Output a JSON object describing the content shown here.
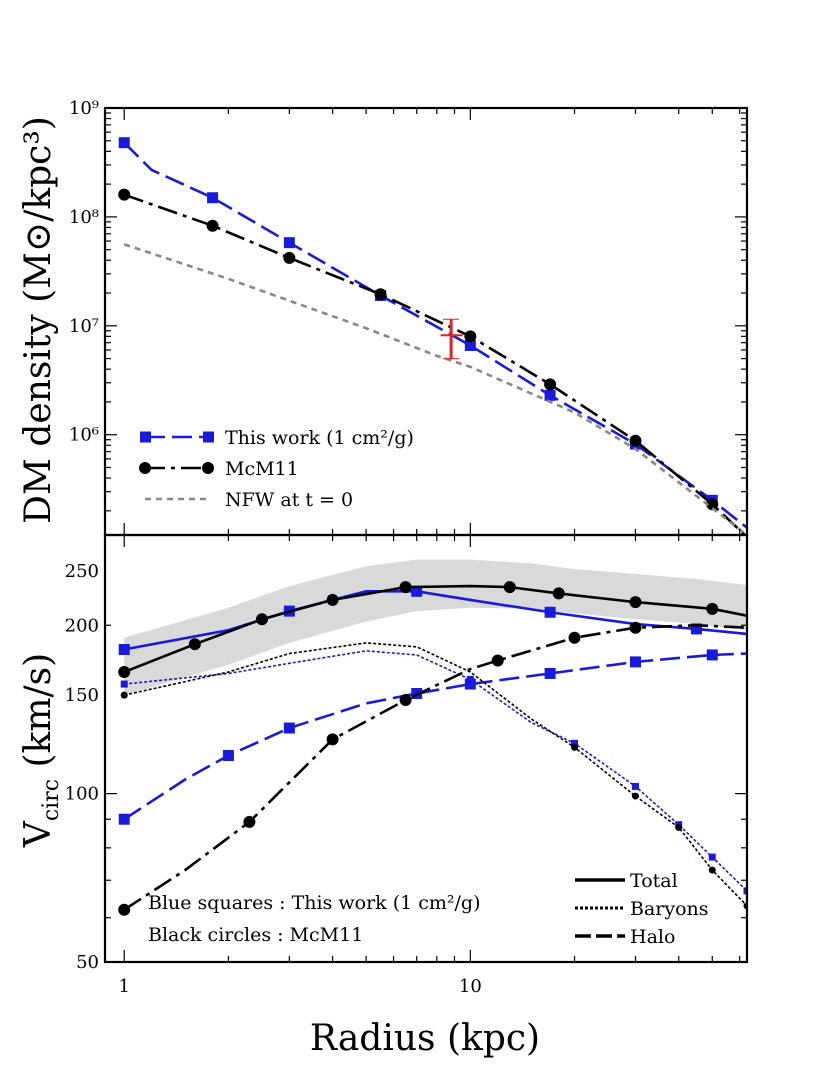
{
  "chart_data": [
    {
      "panel": "top",
      "type": "line",
      "title": "",
      "xlabel": "",
      "ylabel": "DM density (M⊙/kpc³)",
      "xscale": "log",
      "yscale": "log",
      "xlim": [
        0.88,
        63
      ],
      "ylim": [
        120000,
        1000000000
      ],
      "yticks": [
        {
          "value": 1000000,
          "label": "10⁶"
        },
        {
          "value": 10000000,
          "label": "10⁷"
        },
        {
          "value": 100000000,
          "label": "10⁸"
        },
        {
          "value": 1000000000,
          "label": "10⁹"
        }
      ],
      "legend_position": "lower-left",
      "series": [
        {
          "name": "This work (1 cm²/g)",
          "color": "#1a1adc",
          "dash": "long",
          "marker": "square",
          "x": [
            1.0,
            1.2,
            1.8,
            3.0,
            5.5,
            10.0,
            17.0,
            30.0,
            50.0,
            63.0
          ],
          "y": [
            480000000,
            270000000,
            150000000,
            58000000,
            19000000,
            6600000,
            2300000,
            820000,
            250000,
            140000
          ],
          "markers": [
            0,
            2,
            3,
            4,
            5,
            6,
            7,
            8
          ]
        },
        {
          "name": "McM11",
          "color": "#000000",
          "dash": "longdot",
          "marker": "circle",
          "x": [
            1.0,
            1.8,
            3.0,
            5.5,
            10.0,
            17.0,
            30.0,
            50.0,
            63.0
          ],
          "y": [
            160000000,
            83000000,
            42000000,
            19500000,
            8000000,
            2900000,
            880000,
            230000,
            115000
          ],
          "markers": [
            0,
            1,
            2,
            3,
            4,
            5,
            6,
            7
          ]
        },
        {
          "name": "NFW at t = 0",
          "color": "#888888",
          "dash": "short",
          "marker": "none",
          "x": [
            1.0,
            2.0,
            3.0,
            5.0,
            8.0,
            10.0,
            20.0,
            30.0,
            63.0
          ],
          "y": [
            56000000,
            27000000,
            17000000,
            9500000,
            5300000,
            4200000,
            1600000,
            740000,
            120000
          ],
          "markers": []
        }
      ],
      "errorbar": {
        "x": 8.8,
        "y": 8200000,
        "ylow": 5000000,
        "yhigh": 11500000,
        "xlow": 8.2,
        "xhigh": 9.5,
        "color": "#dd2222"
      }
    },
    {
      "panel": "bottom",
      "type": "line",
      "title": "",
      "xlabel": "Radius (kpc)",
      "ylabel": "V_circ (km/s)",
      "xscale": "log",
      "yscale": "log",
      "xlim": [
        0.88,
        63
      ],
      "ylim": [
        50,
        290
      ],
      "xticks": [
        {
          "value": 1,
          "label": "1"
        },
        {
          "value": 10,
          "label": "10"
        }
      ],
      "yticks": [
        {
          "value": 50,
          "label": "50"
        },
        {
          "value": 100,
          "label": "100"
        },
        {
          "value": 150,
          "label": "150"
        },
        {
          "value": 200,
          "label": "200"
        },
        {
          "value": 250,
          "label": "250"
        }
      ],
      "band": {
        "color": "#d9d9d9",
        "x": [
          1.0,
          2.0,
          3.0,
          5.0,
          7.0,
          10.0,
          15.0,
          20.0,
          30.0,
          45.0,
          63.0
        ],
        "upper": [
          190,
          215,
          235,
          255,
          262,
          262,
          258,
          252,
          247,
          242,
          236
        ],
        "lower": [
          150,
          170,
          186,
          203,
          212,
          215,
          214,
          210,
          205,
          201,
          196
        ]
      },
      "series": [
        {
          "name": "Total",
          "color": "#1a1adc",
          "dash": "solid",
          "marker": "square",
          "x": [
            1.0,
            2.0,
            3.0,
            5.0,
            7.0,
            10.0,
            17.0,
            30.0,
            45.0,
            63.0
          ],
          "y": [
            181,
            196,
            212,
            230,
            230,
            222,
            211,
            201,
            197,
            193
          ],
          "markers": [
            0,
            2,
            4,
            6,
            8
          ]
        },
        {
          "name": "Baryons",
          "color": "#1a1adc",
          "dash": "dotted",
          "marker": "square",
          "x": [
            1.0,
            2.0,
            3.0,
            5.0,
            7.0,
            10.0,
            15.0,
            20.0,
            30.0,
            40.0,
            50.0,
            63.0
          ],
          "y": [
            157,
            164,
            171,
            180,
            177,
            160,
            134,
            123,
            103,
            88,
            77,
            67
          ],
          "markers": [
            0,
            5,
            7,
            8,
            9,
            10,
            11
          ]
        },
        {
          "name": "Halo",
          "color": "#1a1adc",
          "dash": "long",
          "marker": "square",
          "x": [
            1.0,
            1.5,
            2.0,
            3.0,
            5.0,
            7.0,
            10.0,
            17.0,
            30.0,
            50.0,
            63.0
          ],
          "y": [
            90,
            106,
            117,
            131,
            145,
            151,
            157,
            164,
            172,
            177,
            178
          ],
          "markers": [
            0,
            2,
            3,
            5,
            6,
            7,
            8,
            9
          ]
        },
        {
          "name": "Total",
          "color": "#000000",
          "dash": "solid",
          "marker": "circle",
          "x": [
            1.0,
            1.6,
            2.5,
            4.0,
            6.5,
            10.0,
            13.0,
            18.0,
            30.0,
            50.0,
            63.0
          ],
          "y": [
            165,
            185,
            205,
            222,
            234,
            235,
            234,
            228,
            220,
            214,
            208
          ],
          "markers": [
            0,
            1,
            2,
            3,
            4,
            6,
            7,
            8,
            9
          ]
        },
        {
          "name": "Baryons",
          "color": "#000000",
          "dash": "dotted",
          "marker": "circle",
          "x": [
            1.0,
            2.0,
            3.0,
            5.0,
            7.0,
            10.0,
            15.0,
            20.0,
            30.0,
            40.0,
            50.0,
            63.0
          ],
          "y": [
            150,
            165,
            178,
            186,
            183,
            165,
            136,
            121,
            99,
            87,
            73,
            63
          ],
          "markers": [
            0,
            7,
            8,
            9,
            10,
            11
          ]
        },
        {
          "name": "Halo",
          "color": "#000000",
          "dash": "longdot",
          "marker": "circle",
          "x": [
            1.0,
            1.5,
            2.3,
            4.0,
            6.5,
            10.0,
            12.0,
            20.0,
            30.0,
            45.0,
            63.0
          ],
          "y": [
            62,
            73,
            89,
            125,
            147,
            167,
            173,
            190,
            198,
            200,
            198
          ],
          "markers": [
            0,
            2,
            3,
            4,
            6,
            7,
            8
          ]
        }
      ]
    }
  ],
  "legend_top": {
    "items": [
      {
        "label": "This work (1 cm²/g)",
        "color": "#1a1adc",
        "dash": "long",
        "marker": "square"
      },
      {
        "label": "McM11",
        "color": "#000000",
        "dash": "longdot",
        "marker": "circle"
      },
      {
        "label": "NFW at t = 0",
        "color": "#888888",
        "dash": "short",
        "marker": "none"
      }
    ]
  },
  "legend_bottom_left": {
    "lines": [
      "Blue squares : This work (1 cm²/g)",
      "Black circles : McM11"
    ]
  },
  "legend_bottom_right": {
    "items": [
      {
        "label": "Total",
        "dash": "solid"
      },
      {
        "label": "Baryons",
        "dash": "dotted"
      },
      {
        "label": "Halo",
        "dash": "long"
      }
    ]
  },
  "axes_text": {
    "top_ylabel": "DM density (M⊙/kpc³)",
    "bottom_ylabel_main": "V",
    "bottom_ylabel_sub": "circ",
    "bottom_ylabel_unit": " (km/s)",
    "xlabel": "Radius (kpc)"
  }
}
